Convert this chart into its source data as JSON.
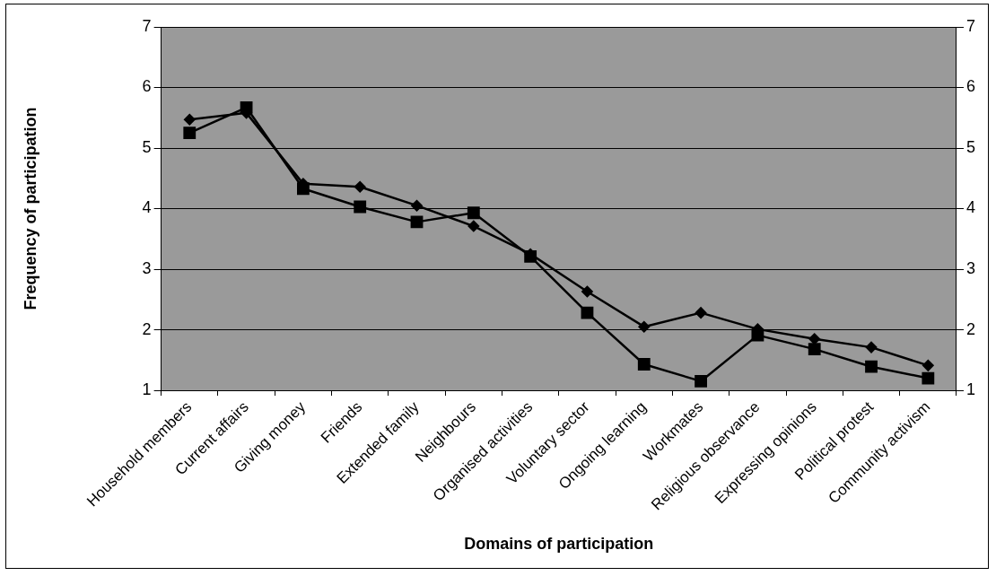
{
  "chart_data": {
    "type": "line",
    "xlabel": "Domains of participation",
    "ylabel": "Frequency of participation",
    "categories": [
      "Household members",
      "Current affairs",
      "Giving money",
      "Friends",
      "Extended family",
      "Neighbours",
      "Organised activities",
      "Voluntary sector",
      "Ongoing learning",
      "Workmates",
      "Religious observance",
      "Expressing opinions",
      "Political protest",
      "Community activism"
    ],
    "series": [
      {
        "color": "#000000",
        "marker": "diamond",
        "values": [
          5.47,
          5.58,
          4.41,
          4.36,
          4.05,
          3.71,
          3.25,
          2.63,
          2.05,
          2.28,
          2.01,
          1.85,
          1.71,
          1.41
        ]
      },
      {
        "color": "#000000",
        "marker": "square",
        "values": [
          5.25,
          5.67,
          4.33,
          4.03,
          3.78,
          3.93,
          3.21,
          2.28,
          1.43,
          1.15,
          1.91,
          1.68,
          1.39,
          1.2
        ]
      }
    ],
    "ylim": [
      1,
      7
    ],
    "yticks": [
      1,
      2,
      3,
      4,
      5,
      6,
      7
    ],
    "y2lim": [
      1,
      7
    ],
    "y2ticks": [
      1,
      2,
      3,
      4,
      5,
      6,
      7
    ],
    "grid": "y",
    "legend": false,
    "line_style": "solid"
  }
}
